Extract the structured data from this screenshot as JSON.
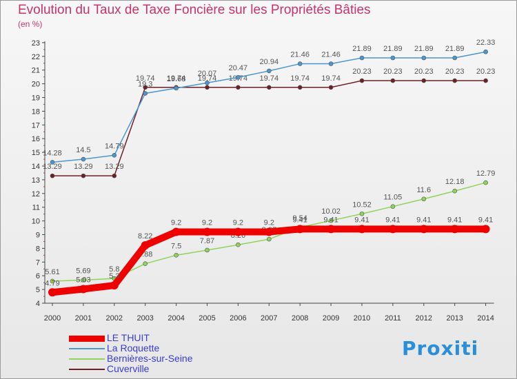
{
  "chart_data": {
    "type": "line",
    "title": "Evolution du Taux de Taxe Foncière sur les Propriétés Bâties",
    "ylabel": "(en %)",
    "xlabel": "",
    "categories": [
      "2000",
      "2001",
      "2002",
      "2003",
      "2004",
      "2005",
      "2006",
      "2007",
      "2008",
      "2009",
      "2010",
      "2011",
      "2012",
      "2013",
      "2014"
    ],
    "ylim": [
      4,
      23
    ],
    "yticks": [
      "4",
      "5",
      "6",
      "7",
      "8",
      "9",
      "10",
      "11",
      "12",
      "13",
      "14",
      "15",
      "16",
      "17",
      "18",
      "19",
      "20",
      "21",
      "22",
      "23"
    ],
    "grid": false,
    "legend_position": "bottom-left",
    "series": [
      {
        "name": "Cuverville",
        "color": "#6e1f26",
        "values": [
          13.29,
          13.29,
          13.29,
          19.74,
          19.74,
          19.74,
          19.74,
          19.74,
          19.74,
          19.74,
          20.23,
          20.23,
          20.23,
          20.23,
          20.23
        ],
        "labels": [
          "13.29",
          "13.29",
          "13.29",
          "19.74",
          "19.74",
          "19.74",
          "19.74",
          "19.74",
          "19.74",
          "19.74",
          "20.23",
          "20.23",
          "20.23",
          "20.23",
          "20.23"
        ]
      },
      {
        "name": "La Roquette",
        "color": "#4a96cf",
        "values": [
          14.28,
          14.5,
          14.79,
          19.3,
          19.68,
          20.07,
          20.47,
          20.94,
          21.46,
          21.46,
          21.89,
          21.89,
          21.89,
          21.89,
          22.33
        ],
        "labels": [
          "14.28",
          "14.5",
          "14.79",
          "19.3",
          "19.68",
          "20.07",
          "20.47",
          "20.94",
          "21.46",
          "21.46",
          "21.89",
          "21.89",
          "21.89",
          "21.89",
          "22.33"
        ]
      },
      {
        "name": "Bernières-sur-Seine",
        "color": "#8fd35a",
        "values": [
          5.61,
          5.69,
          5.8,
          6.88,
          7.5,
          7.87,
          8.26,
          8.67,
          9.54,
          10.02,
          10.52,
          11.05,
          11.6,
          12.18,
          12.79
        ],
        "labels": [
          "5.61",
          "5.69",
          "5.8",
          "6.88",
          "7.5",
          "7.87",
          "8.26",
          "8.67",
          "9.54",
          "10.02",
          "10.52",
          "11.05",
          "11.6",
          "12.18",
          "12.79"
        ]
      },
      {
        "name": "LE THUIT",
        "color": "#ee0000",
        "values": [
          4.79,
          5.03,
          5.3,
          8.22,
          9.2,
          9.2,
          9.2,
          9.2,
          9.41,
          9.41,
          9.41,
          9.41,
          9.41,
          9.41,
          9.41
        ],
        "labels": [
          "4.79",
          "5.03",
          "5.3",
          "8.22",
          "9.2",
          "9.2",
          "9.2",
          "9.2",
          "9.41",
          "9.41",
          "9.41",
          "9.41",
          "9.41",
          "9.41",
          "9.41"
        ]
      }
    ],
    "legend": [
      "LE THUIT",
      "La Roquette",
      "Bernières-sur-Seine",
      "Cuverville"
    ]
  },
  "logo_text": "Proxiti"
}
